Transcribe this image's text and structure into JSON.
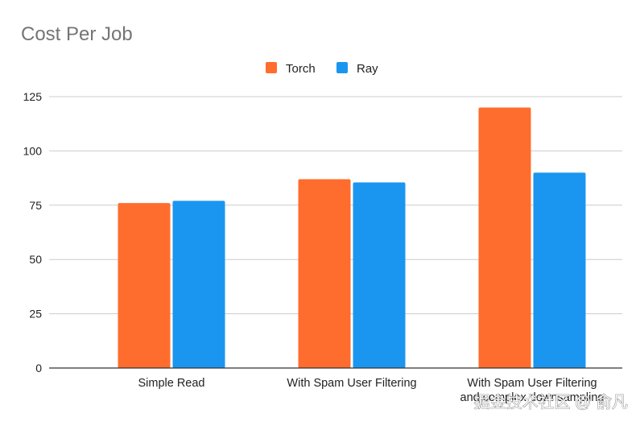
{
  "chart_data": {
    "type": "bar",
    "title": "Cost Per Job",
    "categories": [
      "Simple Read",
      "With Spam User Filtering",
      "With Spam User Filtering and complex downsampling"
    ],
    "series": [
      {
        "name": "Torch",
        "color": "#ff6d2e",
        "values": [
          76,
          87,
          120
        ]
      },
      {
        "name": "Ray",
        "color": "#1a96f0",
        "values": [
          77,
          85.5,
          90
        ]
      }
    ],
    "yticks": [
      0,
      25,
      50,
      75,
      100,
      125
    ],
    "ylim": [
      0,
      125
    ],
    "xlabel": "",
    "ylabel": "",
    "grid": true,
    "legend_position": "top-center"
  },
  "watermark": "掘金技术社区 @ 俞凡"
}
